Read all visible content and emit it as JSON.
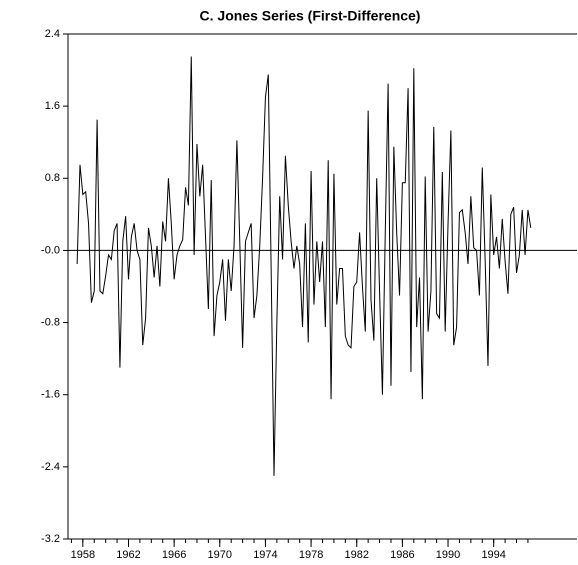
{
  "chart_data": {
    "type": "line",
    "title": "C. Jones Series (First-Difference)",
    "x": [
      1957.5,
      1957.75,
      1958,
      1958.25,
      1958.5,
      1958.75,
      1959,
      1959.25,
      1959.5,
      1959.75,
      1960,
      1960.25,
      1960.5,
      1960.75,
      1961,
      1961.25,
      1961.5,
      1961.75,
      1962,
      1962.25,
      1962.5,
      1962.75,
      1963,
      1963.25,
      1963.5,
      1963.75,
      1964,
      1964.25,
      1964.5,
      1964.75,
      1965,
      1965.25,
      1965.5,
      1965.75,
      1966,
      1966.25,
      1966.5,
      1966.75,
      1967,
      1967.25,
      1967.5,
      1967.75,
      1968,
      1968.25,
      1968.5,
      1968.75,
      1969,
      1969.25,
      1969.5,
      1969.75,
      1970,
      1970.25,
      1970.5,
      1970.75,
      1971,
      1971.25,
      1971.5,
      1971.75,
      1972,
      1972.25,
      1972.5,
      1972.75,
      1973,
      1973.25,
      1973.5,
      1973.75,
      1974,
      1974.25,
      1974.5,
      1974.75,
      1975,
      1975.25,
      1975.5,
      1975.75,
      1976,
      1976.25,
      1976.5,
      1976.75,
      1977,
      1977.25,
      1977.5,
      1977.75,
      1978,
      1978.25,
      1978.5,
      1978.75,
      1979,
      1979.25,
      1979.5,
      1979.75,
      1980,
      1980.25,
      1980.5,
      1980.75,
      1981,
      1981.25,
      1981.5,
      1981.75,
      1982,
      1982.25,
      1982.5,
      1982.75,
      1983,
      1983.25,
      1983.5,
      1983.75,
      1984,
      1984.25,
      1984.5,
      1984.75,
      1985,
      1985.25,
      1985.5,
      1985.75,
      1986,
      1986.25,
      1986.5,
      1986.75,
      1987,
      1987.25,
      1987.5,
      1987.75,
      1988,
      1988.25,
      1988.5,
      1988.75,
      1989,
      1989.25,
      1989.5,
      1989.75,
      1990,
      1990.25,
      1990.5,
      1990.75,
      1991,
      1991.25,
      1991.5,
      1991.75,
      1992,
      1992.25,
      1992.5,
      1992.75,
      1993,
      1993.25,
      1993.5,
      1993.75,
      1994,
      1994.25,
      1994.5,
      1994.75,
      1995,
      1995.25,
      1995.5,
      1995.75,
      1996,
      1996.25,
      1996.5,
      1996.75,
      1997,
      1997.25
    ],
    "values": [
      -0.15,
      0.95,
      0.62,
      0.65,
      0.3,
      -0.58,
      -0.45,
      1.45,
      -0.45,
      -0.48,
      -0.28,
      -0.05,
      -0.1,
      0.22,
      0.3,
      -1.3,
      0.1,
      0.38,
      -0.32,
      0.15,
      0.3,
      0,
      -0.1,
      -1.05,
      -0.75,
      0.25,
      0.05,
      -0.3,
      0.05,
      -0.4,
      0.32,
      0.1,
      0.8,
      0.3,
      -0.32,
      -0.05,
      0.05,
      0.12,
      0.7,
      0.5,
      2.15,
      -0.05,
      1.18,
      0.6,
      0.95,
      0.15,
      -0.65,
      0.78,
      -0.95,
      -0.5,
      -0.35,
      -0.1,
      -0.78,
      -0.1,
      -0.45,
      0.05,
      1.22,
      0.1,
      -1.08,
      0.1,
      0.2,
      0.3,
      -0.75,
      -0.5,
      0.05,
      0.8,
      1.7,
      1.95,
      -0.2,
      -2.5,
      -0.8,
      0.6,
      -0.1,
      1.05,
      0.5,
      0.1,
      -0.2,
      0.05,
      -0.15,
      -0.85,
      0.3,
      -1.02,
      0.88,
      -0.6,
      0.1,
      -0.35,
      0.1,
      -0.85,
      1.0,
      -1.65,
      0.85,
      -0.6,
      -0.2,
      -0.2,
      -0.95,
      -1.05,
      -1.08,
      -0.4,
      -0.35,
      0.2,
      -0.4,
      -0.9,
      1.55,
      -0.55,
      -1.0,
      0.8,
      -0.45,
      -1.6,
      0.2,
      1.85,
      -1.5,
      1.15,
      0.2,
      -0.5,
      0.75,
      0.75,
      1.8,
      -1.35,
      2.02,
      -0.85,
      -0.3,
      -1.65,
      0.82,
      -0.9,
      -0.45,
      1.37,
      -0.7,
      -0.75,
      0.87,
      -0.9,
      0.3,
      1.33,
      -1.05,
      -0.85,
      0.42,
      0.45,
      0.2,
      -0.15,
      0.6,
      0.03,
      0,
      -0.5,
      0.92,
      -0.1,
      -1.28,
      0.62,
      -0.05,
      0.15,
      -0.2,
      0.35,
      -0.12,
      -0.48,
      0.4,
      0.48,
      -0.25,
      -0.05,
      0.45,
      -0.05,
      0.45,
      0.25
    ],
    "color": "#000000",
    "xlim": [
      1956.7,
      2001.3
    ],
    "xticks": [
      1958,
      1962,
      1966,
      1970,
      1974,
      1978,
      1982,
      1986,
      1990,
      1994
    ],
    "xticks_minor": [
      1957,
      1958,
      1959,
      1960,
      1961,
      1962,
      1963,
      1964,
      1965,
      1966,
      1967,
      1968,
      1969,
      1970,
      1971,
      1972,
      1973,
      1974,
      1975,
      1976,
      1977,
      1978,
      1979,
      1980,
      1981,
      1982,
      1983,
      1984,
      1985,
      1986,
      1987,
      1988,
      1989,
      1990,
      1991,
      1992,
      1993,
      1994,
      1995,
      1996,
      1997
    ],
    "ylim": [
      -3.2,
      2.4
    ],
    "yticks": [
      2.4,
      1.6,
      0.8,
      {
        "value": 0,
        "label": "-0.0"
      },
      -0.8,
      -1.6,
      -2.4,
      -3.2
    ],
    "zero_line": true
  }
}
